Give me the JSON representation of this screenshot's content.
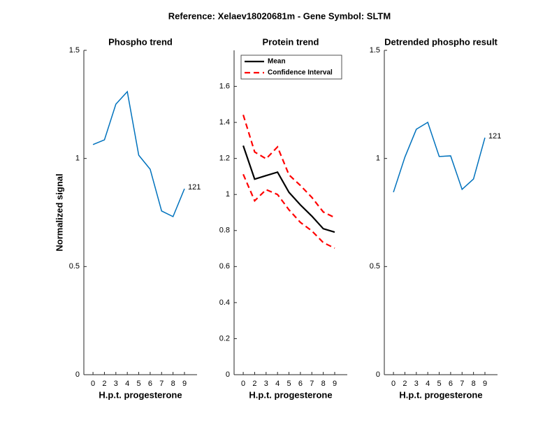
{
  "title": "Reference:  Xelaev18020681m - Gene Symbol:  SLTM",
  "chart_data": [
    {
      "type": "line",
      "title": "Phospho trend",
      "xlabel": "H.p.t. progesterone",
      "ylabel": "Normalized signal",
      "categories": [
        0,
        2,
        3,
        4,
        5,
        6,
        7,
        8,
        9
      ],
      "series": [
        {
          "color": "#0072bd",
          "style": "solid",
          "values": [
            1.064,
            1.086,
            1.251,
            1.309,
            1.015,
            0.95,
            0.757,
            0.731,
            0.86
          ]
        }
      ],
      "annotation": "121",
      "ylim": [
        0,
        1.5
      ],
      "yticks": [
        0,
        0.5,
        1,
        1.5
      ]
    },
    {
      "type": "line",
      "title": "Protein trend",
      "xlabel": "H.p.t. progesterone",
      "categories": [
        0,
        2,
        3,
        4,
        5,
        6,
        7,
        8,
        9
      ],
      "series": [
        {
          "name": "Mean",
          "color": "#000000",
          "style": "solid",
          "values": [
            1.271,
            1.085,
            1.105,
            1.124,
            1.012,
            0.942,
            0.88,
            0.81,
            0.791
          ]
        },
        {
          "name": "Confidence Interval",
          "color": "#ff0000",
          "style": "dashed",
          "values": [
            1.442,
            1.236,
            1.198,
            1.264,
            1.109,
            1.05,
            0.984,
            0.903,
            0.872
          ],
          "lower": [
            1.112,
            0.965,
            1.027,
            1.0,
            0.915,
            0.845,
            0.798,
            0.733,
            0.702
          ]
        }
      ],
      "legend": "upper-left",
      "ylim": [
        0,
        1.8
      ],
      "yticks": [
        0,
        0.2,
        0.4,
        0.6,
        0.8,
        1,
        1.2,
        1.4,
        1.6
      ]
    },
    {
      "type": "line",
      "title": "Detrended phospho result",
      "xlabel": "H.p.t. progesterone",
      "categories": [
        0,
        2,
        3,
        4,
        5,
        6,
        7,
        8,
        9
      ],
      "series": [
        {
          "color": "#0072bd",
          "style": "solid",
          "values": [
            0.844,
            1.006,
            1.135,
            1.167,
            1.009,
            1.012,
            0.857,
            0.905,
            1.096
          ]
        }
      ],
      "annotation": "121",
      "ylim": [
        0,
        1.5
      ],
      "yticks": [
        0,
        0.5,
        1,
        1.5
      ]
    }
  ]
}
